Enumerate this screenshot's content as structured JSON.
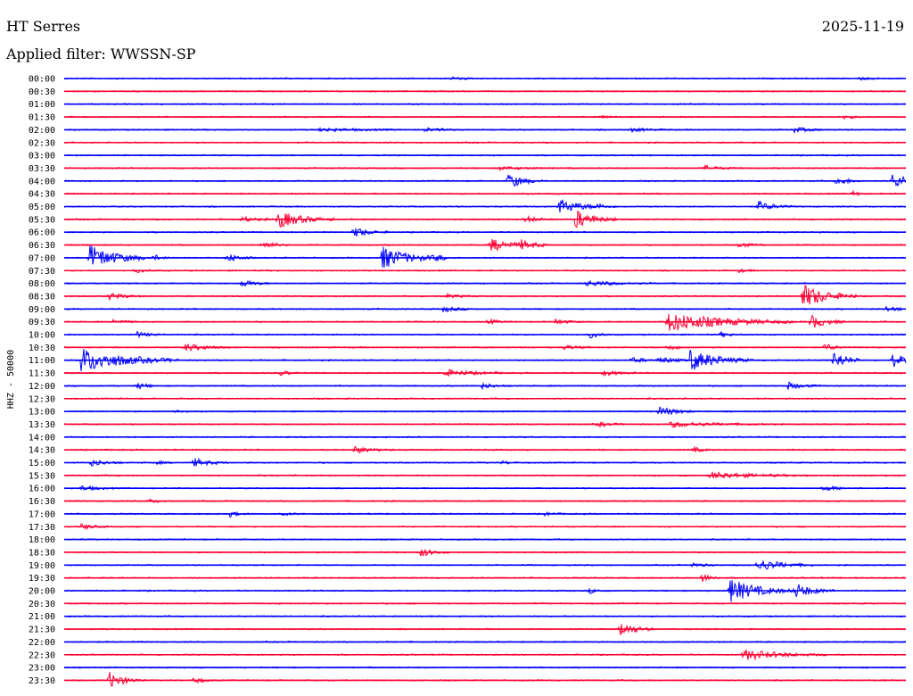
{
  "header": {
    "station": "HT Serres",
    "date": "2025-11-19",
    "filter": "Applied filter: WWSSN-SP"
  },
  "chart_data": {
    "type": "line",
    "ylabel": "HHZ - 50000",
    "colors": {
      "odd": "#0000ff",
      "even": "#ff0033"
    },
    "rows": [
      "00:00",
      "00:30",
      "01:00",
      "01:30",
      "02:00",
      "02:30",
      "03:00",
      "03:30",
      "04:00",
      "04:30",
      "05:00",
      "05:30",
      "06:00",
      "06:30",
      "07:00",
      "07:30",
      "08:00",
      "08:30",
      "09:00",
      "09:30",
      "10:00",
      "10:30",
      "11:00",
      "11:30",
      "12:00",
      "12:30",
      "13:00",
      "13:30",
      "14:00",
      "14:30",
      "15:00",
      "15:30",
      "16:00",
      "16:30",
      "17:00",
      "17:30",
      "18:00",
      "18:30",
      "19:00",
      "19:30",
      "20:00",
      "20:30",
      "21:00",
      "21:30",
      "22:00",
      "22:30",
      "23:00",
      "23:30"
    ],
    "x_range_minutes": [
      0,
      30
    ],
    "events": [
      {
        "row": 0,
        "t": 28.2,
        "amp": 2,
        "dur": 0.4
      },
      {
        "row": 0,
        "t": 13.8,
        "amp": 2,
        "dur": 0.3
      },
      {
        "row": 3,
        "t": 19.1,
        "amp": 2,
        "dur": 0.3
      },
      {
        "row": 3,
        "t": 27.8,
        "amp": 2,
        "dur": 0.3
      },
      {
        "row": 4,
        "t": 9.1,
        "amp": 2,
        "dur": 1.2
      },
      {
        "row": 4,
        "t": 12.8,
        "amp": 2,
        "dur": 0.6
      },
      {
        "row": 4,
        "t": 26.0,
        "amp": 3,
        "dur": 0.5
      },
      {
        "row": 4,
        "t": 20.2,
        "amp": 2,
        "dur": 0.6
      },
      {
        "row": 7,
        "t": 22.8,
        "amp": 3,
        "dur": 0.5
      },
      {
        "row": 7,
        "t": 15.5,
        "amp": 2,
        "dur": 0.8
      },
      {
        "row": 8,
        "t": 15.8,
        "amp": 9,
        "dur": 0.5
      },
      {
        "row": 8,
        "t": 29.5,
        "amp": 8,
        "dur": 0.6
      },
      {
        "row": 8,
        "t": 27.5,
        "amp": 5,
        "dur": 0.4
      },
      {
        "row": 9,
        "t": 28.1,
        "amp": 3,
        "dur": 0.2
      },
      {
        "row": 10,
        "t": 17.6,
        "amp": 9,
        "dur": 0.7
      },
      {
        "row": 10,
        "t": 24.7,
        "amp": 6,
        "dur": 0.5
      },
      {
        "row": 10,
        "t": 19.0,
        "amp": 2,
        "dur": 0.4
      },
      {
        "row": 11,
        "t": 7.6,
        "amp": 10,
        "dur": 0.8
      },
      {
        "row": 11,
        "t": 18.2,
        "amp": 11,
        "dur": 0.6
      },
      {
        "row": 11,
        "t": 16.4,
        "amp": 4,
        "dur": 0.4
      },
      {
        "row": 11,
        "t": 6.3,
        "amp": 3,
        "dur": 0.5
      },
      {
        "row": 12,
        "t": 10.3,
        "amp": 6,
        "dur": 0.5
      },
      {
        "row": 13,
        "t": 15.2,
        "amp": 7,
        "dur": 0.8
      },
      {
        "row": 13,
        "t": 7.0,
        "amp": 5,
        "dur": 0.4
      },
      {
        "row": 13,
        "t": 24.0,
        "amp": 3,
        "dur": 0.4
      },
      {
        "row": 13,
        "t": 16.3,
        "amp": 4,
        "dur": 0.4
      },
      {
        "row": 14,
        "t": 0.9,
        "amp": 14,
        "dur": 0.9
      },
      {
        "row": 14,
        "t": 11.3,
        "amp": 13,
        "dur": 0.9
      },
      {
        "row": 14,
        "t": 5.8,
        "amp": 5,
        "dur": 0.4
      },
      {
        "row": 14,
        "t": 3.2,
        "amp": 3,
        "dur": 0.3
      },
      {
        "row": 14,
        "t": 13.2,
        "amp": 3,
        "dur": 0.3
      },
      {
        "row": 15,
        "t": 24.0,
        "amp": 2,
        "dur": 0.3
      },
      {
        "row": 15,
        "t": 2.5,
        "amp": 2,
        "dur": 0.4
      },
      {
        "row": 16,
        "t": 6.3,
        "amp": 5,
        "dur": 0.4
      },
      {
        "row": 16,
        "t": 18.6,
        "amp": 3,
        "dur": 1.0
      },
      {
        "row": 17,
        "t": 26.3,
        "amp": 14,
        "dur": 0.8
      },
      {
        "row": 17,
        "t": 1.6,
        "amp": 4,
        "dur": 0.5
      },
      {
        "row": 17,
        "t": 13.6,
        "amp": 2,
        "dur": 0.5
      },
      {
        "row": 18,
        "t": 13.5,
        "amp": 3,
        "dur": 0.5
      },
      {
        "row": 18,
        "t": 29.3,
        "amp": 3,
        "dur": 0.4
      },
      {
        "row": 19,
        "t": 21.5,
        "amp": 11,
        "dur": 1.8
      },
      {
        "row": 19,
        "t": 26.6,
        "amp": 8,
        "dur": 0.5
      },
      {
        "row": 19,
        "t": 1.7,
        "amp": 3,
        "dur": 0.4
      },
      {
        "row": 19,
        "t": 17.5,
        "amp": 3,
        "dur": 0.4
      },
      {
        "row": 19,
        "t": 15.1,
        "amp": 3,
        "dur": 0.3
      },
      {
        "row": 20,
        "t": 2.6,
        "amp": 3,
        "dur": 0.4
      },
      {
        "row": 20,
        "t": 18.7,
        "amp": 4,
        "dur": 0.3
      },
      {
        "row": 20,
        "t": 23.4,
        "amp": 3,
        "dur": 0.3
      },
      {
        "row": 21,
        "t": 4.3,
        "amp": 4,
        "dur": 0.7
      },
      {
        "row": 21,
        "t": 17.8,
        "amp": 3,
        "dur": 0.4
      },
      {
        "row": 21,
        "t": 21.5,
        "amp": 4,
        "dur": 0.3
      },
      {
        "row": 21,
        "t": 27.1,
        "amp": 5,
        "dur": 0.3
      },
      {
        "row": 22,
        "t": 0.6,
        "amp": 14,
        "dur": 1.4
      },
      {
        "row": 22,
        "t": 22.3,
        "amp": 12,
        "dur": 0.9
      },
      {
        "row": 22,
        "t": 27.4,
        "amp": 12,
        "dur": 0.4
      },
      {
        "row": 22,
        "t": 29.5,
        "amp": 8,
        "dur": 0.5
      },
      {
        "row": 22,
        "t": 21.2,
        "amp": 4,
        "dur": 0.5
      },
      {
        "row": 22,
        "t": 20.2,
        "amp": 3,
        "dur": 0.5
      },
      {
        "row": 23,
        "t": 13.5,
        "amp": 4,
        "dur": 0.9
      },
      {
        "row": 23,
        "t": 7.7,
        "amp": 3,
        "dur": 0.3
      },
      {
        "row": 23,
        "t": 19.2,
        "amp": 3,
        "dur": 0.5
      },
      {
        "row": 24,
        "t": 2.6,
        "amp": 4,
        "dur": 0.3
      },
      {
        "row": 24,
        "t": 14.9,
        "amp": 3,
        "dur": 0.4
      },
      {
        "row": 24,
        "t": 25.8,
        "amp": 4,
        "dur": 0.5
      },
      {
        "row": 26,
        "t": 21.2,
        "amp": 6,
        "dur": 0.5
      },
      {
        "row": 26,
        "t": 3.9,
        "amp": 2,
        "dur": 0.3
      },
      {
        "row": 27,
        "t": 21.6,
        "amp": 3,
        "dur": 1.5
      },
      {
        "row": 27,
        "t": 19.0,
        "amp": 3,
        "dur": 0.4
      },
      {
        "row": 29,
        "t": 10.3,
        "amp": 4,
        "dur": 0.6
      },
      {
        "row": 29,
        "t": 22.4,
        "amp": 3,
        "dur": 0.3
      },
      {
        "row": 30,
        "t": 0.9,
        "amp": 4,
        "dur": 0.5
      },
      {
        "row": 30,
        "t": 4.6,
        "amp": 5,
        "dur": 0.5
      },
      {
        "row": 30,
        "t": 3.2,
        "amp": 2,
        "dur": 0.3
      },
      {
        "row": 30,
        "t": 15.6,
        "amp": 2,
        "dur": 0.3
      },
      {
        "row": 31,
        "t": 23.0,
        "amp": 4,
        "dur": 1.4
      },
      {
        "row": 32,
        "t": 0.6,
        "amp": 3,
        "dur": 0.5
      },
      {
        "row": 32,
        "t": 27.0,
        "amp": 3,
        "dur": 0.6
      },
      {
        "row": 33,
        "t": 3.0,
        "amp": 2,
        "dur": 0.4
      },
      {
        "row": 34,
        "t": 5.9,
        "amp": 3,
        "dur": 0.3
      },
      {
        "row": 34,
        "t": 7.8,
        "amp": 2,
        "dur": 0.3
      },
      {
        "row": 34,
        "t": 17.1,
        "amp": 2,
        "dur": 0.3
      },
      {
        "row": 35,
        "t": 0.6,
        "amp": 3,
        "dur": 0.4
      },
      {
        "row": 37,
        "t": 12.7,
        "amp": 5,
        "dur": 0.4
      },
      {
        "row": 38,
        "t": 22.3,
        "amp": 3,
        "dur": 0.4
      },
      {
        "row": 38,
        "t": 24.7,
        "amp": 7,
        "dur": 0.8
      },
      {
        "row": 39,
        "t": 22.7,
        "amp": 5,
        "dur": 0.3
      },
      {
        "row": 40,
        "t": 23.7,
        "amp": 14,
        "dur": 0.9
      },
      {
        "row": 40,
        "t": 26.0,
        "amp": 9,
        "dur": 0.6
      },
      {
        "row": 40,
        "t": 18.7,
        "amp": 3,
        "dur": 0.3
      },
      {
        "row": 43,
        "t": 19.8,
        "amp": 8,
        "dur": 0.5
      },
      {
        "row": 45,
        "t": 24.2,
        "amp": 6,
        "dur": 1.2
      },
      {
        "row": 47,
        "t": 1.6,
        "amp": 9,
        "dur": 0.5
      },
      {
        "row": 47,
        "t": 4.6,
        "amp": 4,
        "dur": 0.3
      }
    ]
  }
}
